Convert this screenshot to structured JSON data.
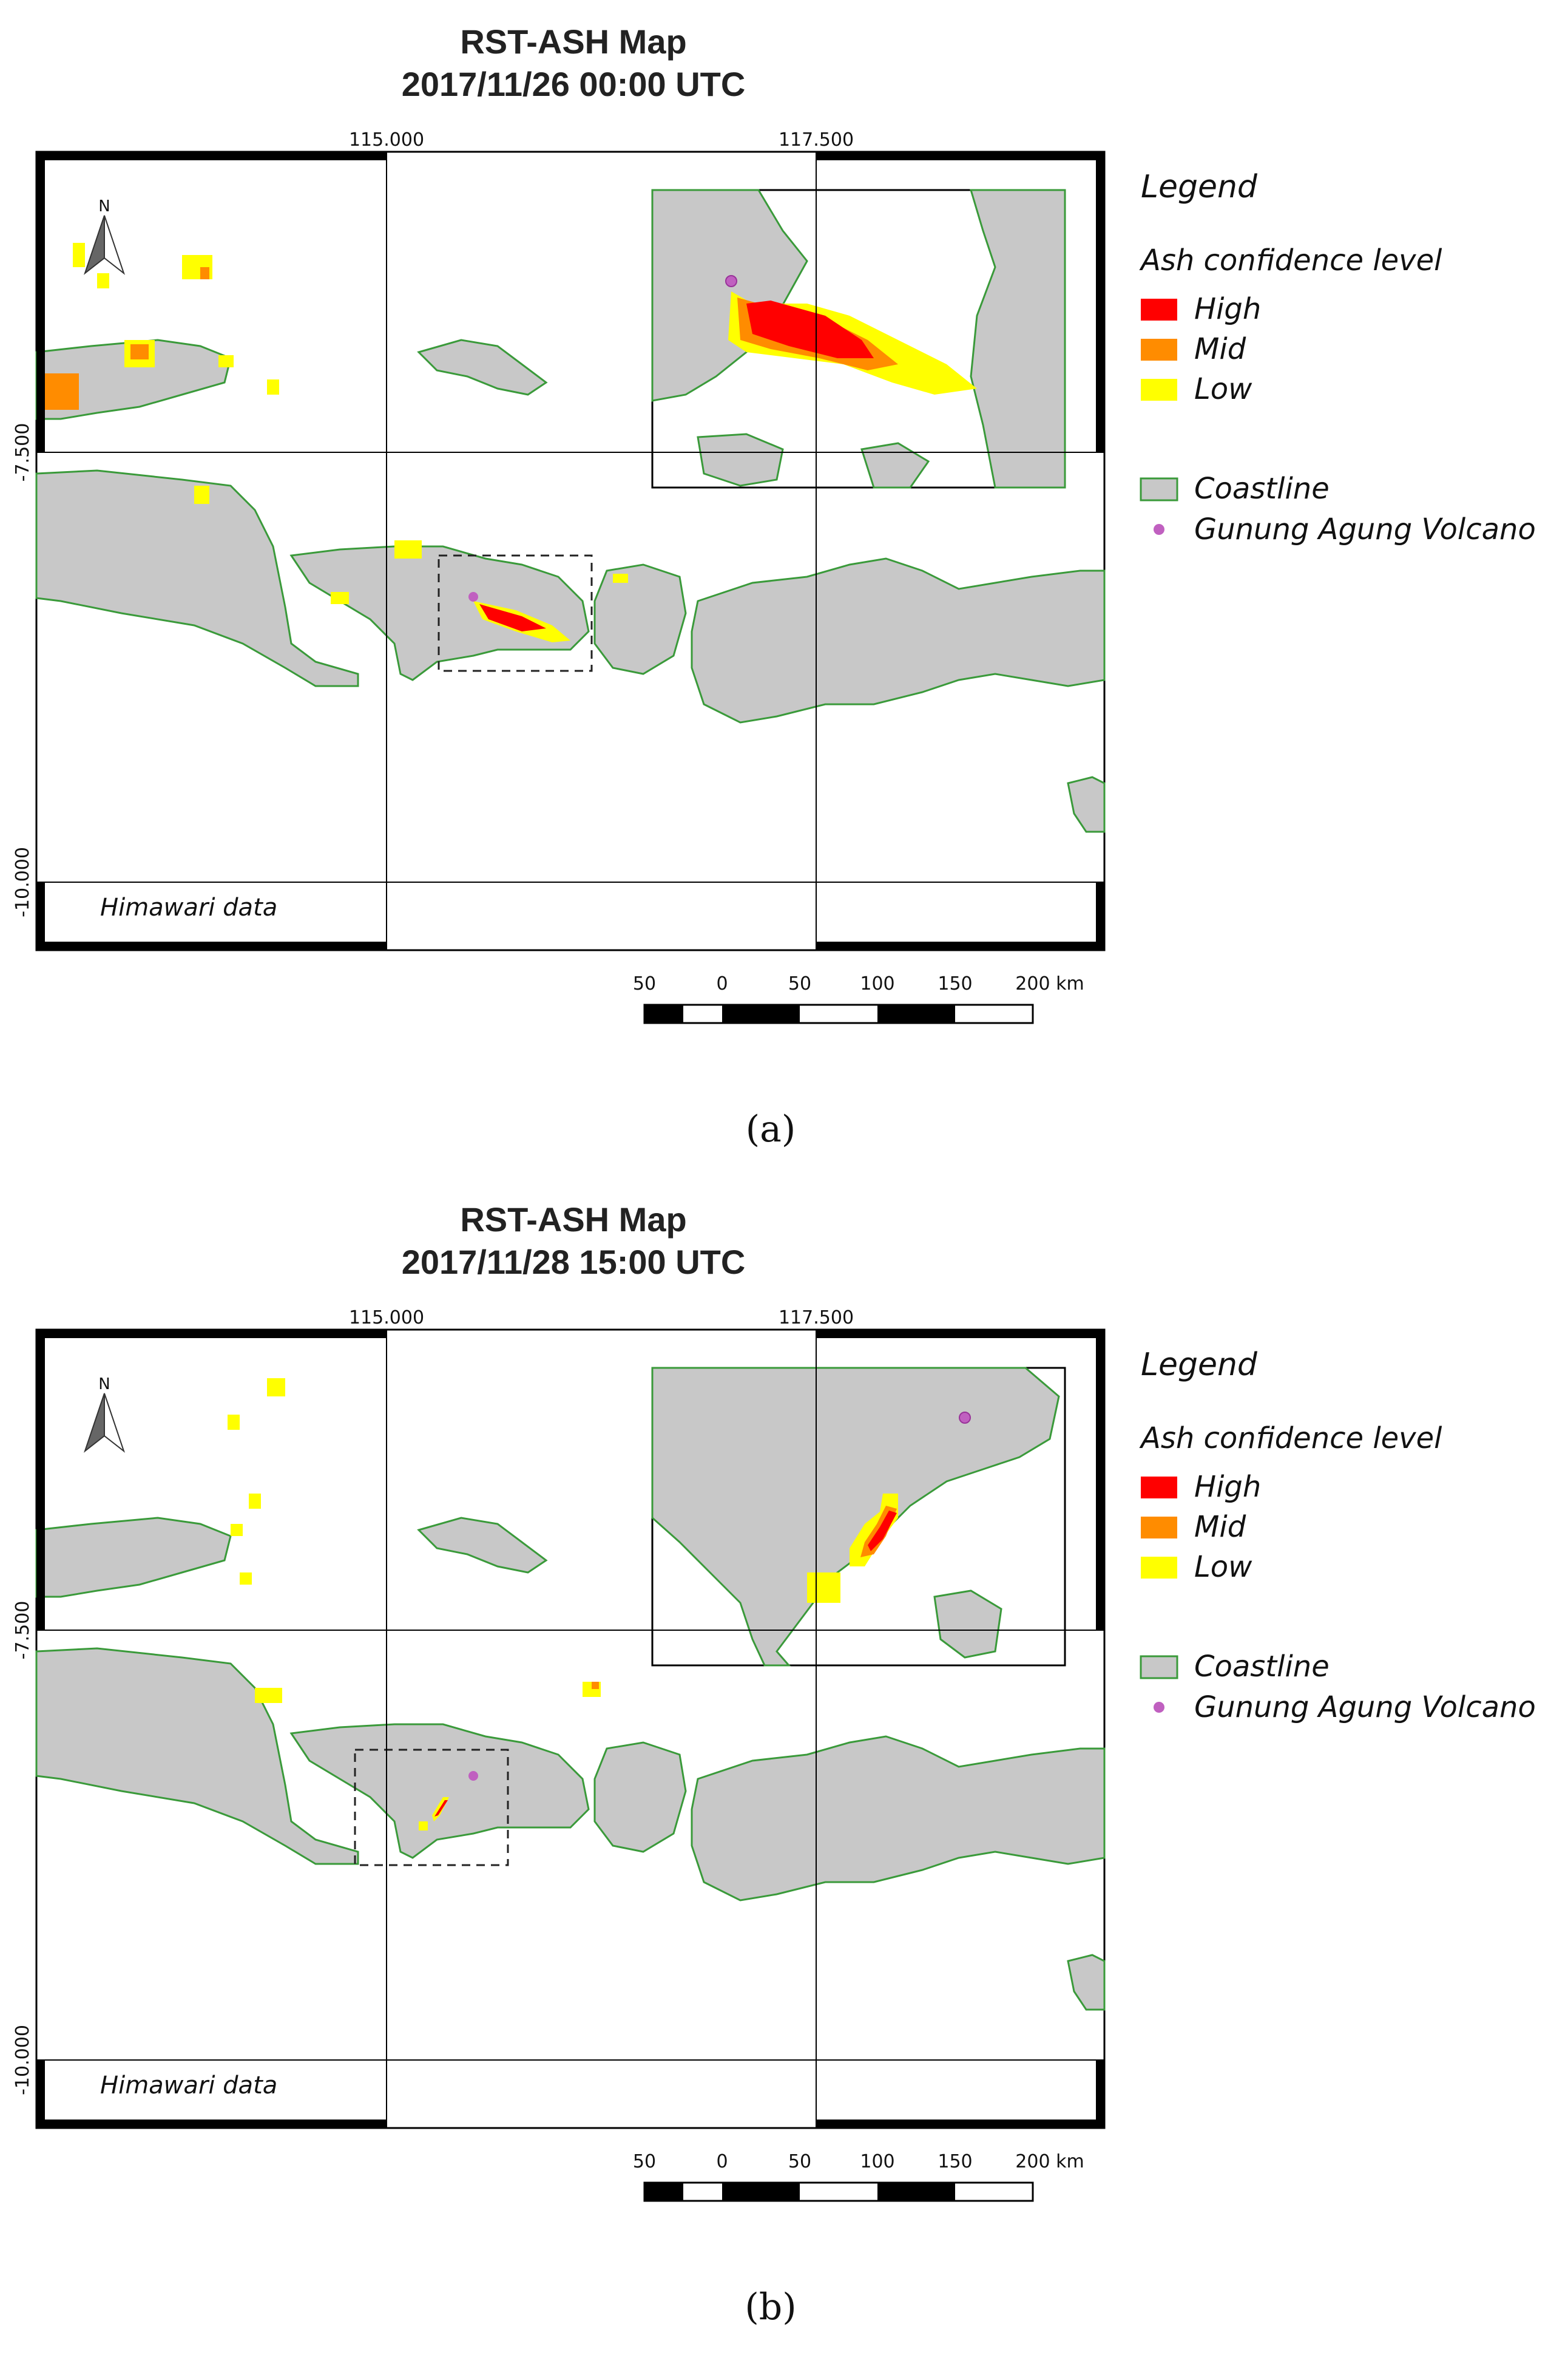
{
  "panels": [
    {
      "title_line1": "RST-ASH Map",
      "title_line2": "2017/11/26 00:00 UTC",
      "caption": "(a)",
      "volcano_inset_pos": "upper-left",
      "zoom_box": "over-eastern-Bali"
    },
    {
      "title_line1": "RST-ASH Map",
      "title_line2": "2017/11/28 15:00 UTC",
      "caption": "(b)",
      "volcano_inset_pos": "upper-right",
      "zoom_box": "over-southern-Bali"
    }
  ],
  "axes": {
    "lon_ticks": [
      "115.000",
      "117.500"
    ],
    "lat_ticks": [
      "-7.500",
      "-10.000"
    ]
  },
  "map": {
    "source_label": "Himawari data",
    "north_label": "N",
    "scale_labels": [
      "50",
      "0",
      "50",
      "100",
      "150",
      "200 km"
    ]
  },
  "legend": {
    "title": "Legend",
    "subtitle": "Ash confidence level",
    "items": [
      {
        "label": "High",
        "color": "#ff0000"
      },
      {
        "label": "Mid",
        "color": "#ff8c00"
      },
      {
        "label": "Low",
        "color": "#ffff00"
      }
    ],
    "coastline_label": "Coastline",
    "coastline_color": "#c8c8c8",
    "coastline_stroke": "#3a9a3a",
    "volcano_label": "Gunung Agung Volcano",
    "volcano_color": "#c060c0"
  }
}
